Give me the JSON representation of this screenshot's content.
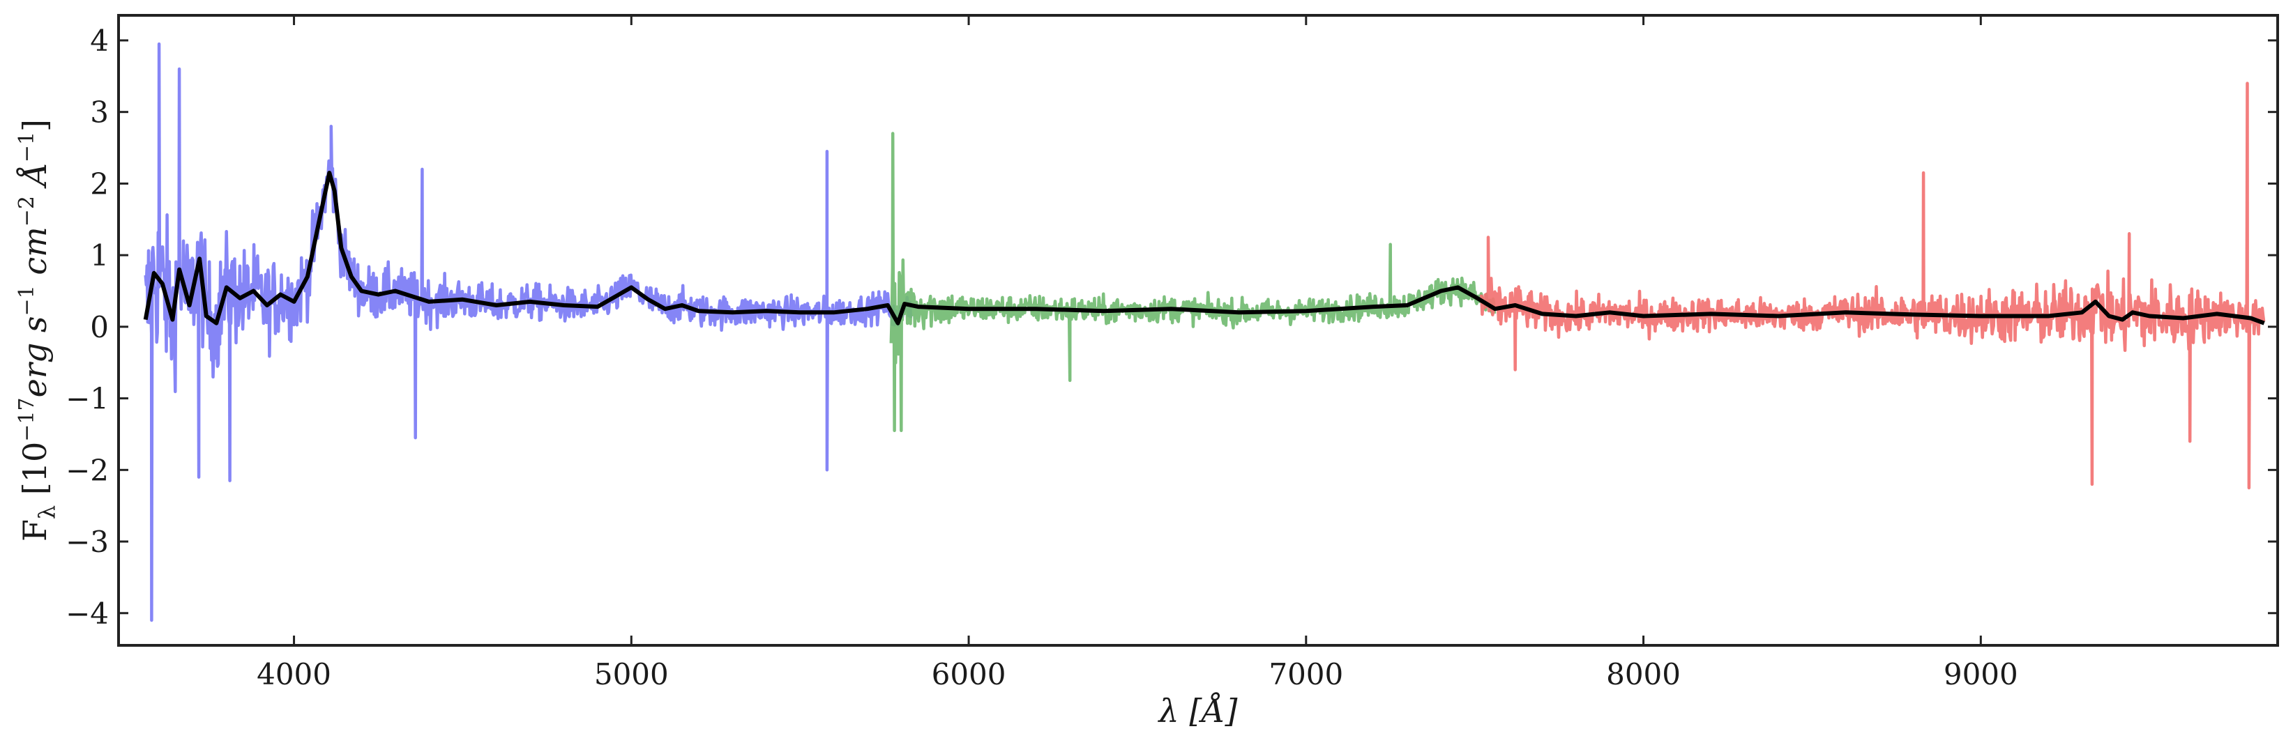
{
  "chart_data": {
    "type": "line",
    "title": "",
    "xlabel_italic": "λ",
    "xlabel_unit": "[Å]",
    "ylabel_main": "F",
    "ylabel_sub": "λ",
    "ylabel_unit_prefix": " [10",
    "ylabel_unit_exp": "−17",
    "ylabel_unit_body": "erg s",
    "ylabel_unit_exp2": "−1",
    "ylabel_unit_cm": " cm",
    "ylabel_unit_exp3": "−2",
    "ylabel_unit_A": " Å",
    "ylabel_unit_exp4": "−1",
    "ylabel_unit_close": "]",
    "xlim": [
      3480,
      9880
    ],
    "ylim": [
      -4.45,
      4.35
    ],
    "xticks": [
      4000,
      5000,
      6000,
      7000,
      8000,
      9000
    ],
    "xtick_labels": [
      "4000",
      "5000",
      "6000",
      "7000",
      "8000",
      "9000"
    ],
    "yticks": [
      -4,
      -3,
      -2,
      -1,
      0,
      1,
      2,
      3,
      4
    ],
    "ytick_labels": [
      "−4",
      "−3",
      "−2",
      "−1",
      "0",
      "1",
      "2",
      "3",
      "4"
    ],
    "grid": false,
    "legend": "none",
    "series": [
      {
        "color": "#7b7bf5",
        "x_range": [
          3560,
          5830
        ],
        "noise_envelope": [
          [
            3560,
            2.2
          ],
          [
            3700,
            1.5
          ],
          [
            3900,
            1.1
          ],
          [
            4150,
            0.7
          ],
          [
            4600,
            0.45
          ],
          [
            5200,
            0.4
          ],
          [
            5830,
            0.35
          ]
        ],
        "spikes": [
          [
            3578,
            -4.1
          ],
          [
            3600,
            3.95
          ],
          [
            3660,
            3.6
          ],
          [
            3718,
            -2.1
          ],
          [
            3810,
            -2.15
          ],
          [
            4110,
            2.8
          ],
          [
            4360,
            -1.55
          ],
          [
            4380,
            2.2
          ],
          [
            5580,
            2.45
          ],
          [
            5580,
            -2.0
          ]
        ]
      },
      {
        "color": "#72bb72",
        "x_range": [
          5770,
          7560
        ],
        "noise_envelope": [
          [
            5770,
            1.8
          ],
          [
            5830,
            0.6
          ],
          [
            6000,
            0.35
          ],
          [
            7000,
            0.3
          ],
          [
            7560,
            0.35
          ]
        ],
        "spikes": [
          [
            5775,
            2.7
          ],
          [
            5780,
            -1.45
          ],
          [
            5800,
            -1.45
          ],
          [
            6300,
            -0.75
          ],
          [
            7250,
            1.15
          ]
        ]
      },
      {
        "color": "#f27272",
        "x_range": [
          7520,
          9840
        ],
        "noise_envelope": [
          [
            7520,
            0.6
          ],
          [
            7700,
            0.45
          ],
          [
            8500,
            0.4
          ],
          [
            9300,
            0.8
          ],
          [
            9500,
            0.9
          ],
          [
            9840,
            0.4
          ]
        ],
        "spikes": [
          [
            7540,
            1.25
          ],
          [
            7620,
            -0.6
          ],
          [
            8830,
            2.15
          ],
          [
            9330,
            -2.2
          ],
          [
            9440,
            1.3
          ],
          [
            9620,
            -1.6
          ],
          [
            9790,
            3.4
          ],
          [
            9795,
            -2.25
          ]
        ]
      },
      {
        "color": "#000000",
        "role": "smoothed",
        "x": [
          3560,
          3585,
          3610,
          3640,
          3660,
          3690,
          3720,
          3740,
          3770,
          3800,
          3840,
          3880,
          3920,
          3960,
          4000,
          4040,
          4080,
          4105,
          4120,
          4140,
          4170,
          4200,
          4250,
          4300,
          4400,
          4500,
          4600,
          4700,
          4800,
          4900,
          5000,
          5050,
          5100,
          5150,
          5200,
          5300,
          5400,
          5500,
          5600,
          5700,
          5760,
          5790,
          5810,
          5850,
          6000,
          6200,
          6400,
          6600,
          6800,
          7000,
          7200,
          7300,
          7400,
          7450,
          7500,
          7560,
          7620,
          7700,
          7800,
          7900,
          8000,
          8200,
          8400,
          8600,
          8800,
          9000,
          9200,
          9300,
          9340,
          9380,
          9420,
          9450,
          9500,
          9600,
          9700,
          9800,
          9840
        ],
        "y": [
          0.1,
          0.75,
          0.6,
          0.1,
          0.8,
          0.3,
          0.95,
          0.15,
          0.05,
          0.55,
          0.4,
          0.5,
          0.3,
          0.45,
          0.35,
          0.7,
          1.6,
          2.15,
          1.9,
          1.1,
          0.7,
          0.5,
          0.45,
          0.5,
          0.35,
          0.38,
          0.3,
          0.35,
          0.3,
          0.28,
          0.55,
          0.38,
          0.25,
          0.3,
          0.22,
          0.2,
          0.22,
          0.2,
          0.2,
          0.25,
          0.3,
          0.05,
          0.32,
          0.28,
          0.25,
          0.25,
          0.22,
          0.25,
          0.2,
          0.22,
          0.28,
          0.3,
          0.5,
          0.55,
          0.42,
          0.25,
          0.3,
          0.18,
          0.15,
          0.2,
          0.15,
          0.18,
          0.15,
          0.2,
          0.17,
          0.15,
          0.15,
          0.2,
          0.35,
          0.15,
          0.1,
          0.2,
          0.15,
          0.12,
          0.18,
          0.12,
          0.05
        ]
      }
    ]
  }
}
